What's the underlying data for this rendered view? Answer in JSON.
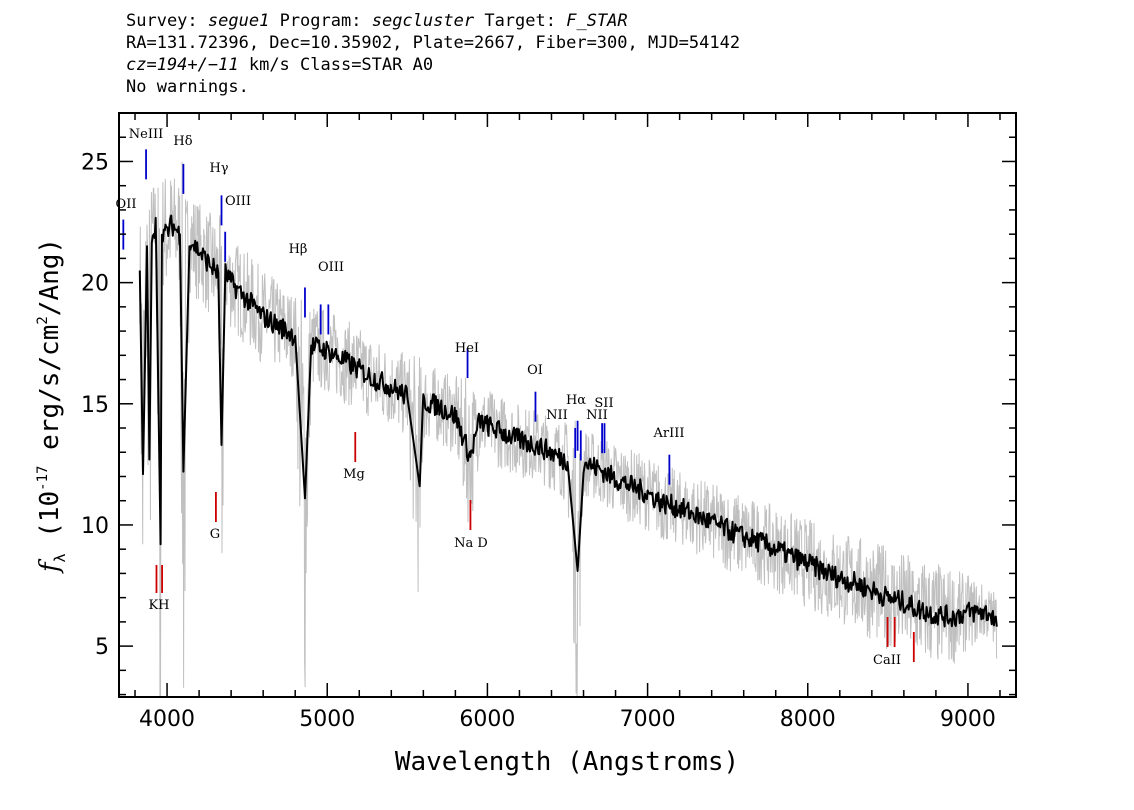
{
  "header": {
    "survey_label": "Survey:",
    "survey": "segue1",
    "program_label": "Program:",
    "program": "segcluster",
    "target_label": "Target:",
    "target": "F_STAR",
    "line2": "RA=131.72396, Dec=10.35902, Plate=2667, Fiber=300, MJD=54142",
    "cz_value": "cz=194+/−11",
    "cz_rest": "km/s Class=STAR A0",
    "warnings": "No warnings."
  },
  "chart_data": {
    "type": "line",
    "xlabel": "Wavelength (Angstroms)",
    "ylabel": "f_λ (10^-17 erg/s/cm^2/Ang)",
    "xlim": [
      3700,
      9300
    ],
    "ylim": [
      2.9,
      27
    ],
    "x_ticks": [
      4000,
      5000,
      6000,
      7000,
      8000,
      9000
    ],
    "y_ticks": [
      5,
      10,
      15,
      20,
      25
    ],
    "series": [
      {
        "role": "flux",
        "color": "#000000",
        "x": [
          3830,
          3850,
          3875,
          3890,
          3905,
          3930,
          3960,
          3968,
          3990,
          4030,
          4080,
          4102,
          4140,
          4200,
          4260,
          4320,
          4340,
          4365,
          4400,
          4500,
          4600,
          4700,
          4800,
          4861,
          4900,
          5000,
          5100,
          5200,
          5300,
          5400,
          5500,
          5577,
          5600,
          5700,
          5800,
          5893,
          5950,
          6000,
          6100,
          6200,
          6300,
          6400,
          6500,
          6563,
          6600,
          6700,
          6800,
          6900,
          7000,
          7100,
          7200,
          7300,
          7400,
          7500,
          7600,
          7700,
          7800,
          7900,
          8000,
          8100,
          8200,
          8300,
          8400,
          8500,
          8600,
          8700,
          8800,
          8900,
          9000,
          9100,
          9150,
          9180
        ],
        "y": [
          20.5,
          12.1,
          21.5,
          12.7,
          22.0,
          22.4,
          9.2,
          22.2,
          22.0,
          22.4,
          22.0,
          12.2,
          21.8,
          21.3,
          20.8,
          20.4,
          13.3,
          20.4,
          20.0,
          19.3,
          18.6,
          18.2,
          17.8,
          11.1,
          17.4,
          17.2,
          16.8,
          16.4,
          16.0,
          15.7,
          15.3,
          11.6,
          15.1,
          14.9,
          14.5,
          12.8,
          14.3,
          14.1,
          13.8,
          13.5,
          13.3,
          13.0,
          12.6,
          8.1,
          12.6,
          12.3,
          11.9,
          11.6,
          11.3,
          10.9,
          10.7,
          10.4,
          10.1,
          9.8,
          9.5,
          9.3,
          9.0,
          8.7,
          8.4,
          8.1,
          7.8,
          7.6,
          7.3,
          7.0,
          6.8,
          6.5,
          6.3,
          6.2,
          6.4,
          6.4,
          6.3,
          5.8
        ]
      },
      {
        "role": "error",
        "color": "#c0c0c0",
        "x": [
          3830,
          3900,
          4000,
          4100,
          4200,
          4300,
          4400,
          4600,
          4800,
          5000,
          5200,
          5400,
          5600,
          5800,
          6000,
          6200,
          6400,
          6600,
          6800,
          7000,
          7200,
          7400,
          7600,
          7800,
          8000,
          8200,
          8400,
          8600,
          8800,
          9000,
          9180
        ],
        "y": [
          22.5,
          24.0,
          24.5,
          24.2,
          23.2,
          22.5,
          21.8,
          20.4,
          19.4,
          18.8,
          18.0,
          17.2,
          16.6,
          16.0,
          15.5,
          14.9,
          14.4,
          13.9,
          13.3,
          12.7,
          12.1,
          11.6,
          11.1,
          10.6,
          10.1,
          9.6,
          9.2,
          8.7,
          8.3,
          7.8,
          7.2
        ]
      }
    ],
    "emission_lines": [
      {
        "label": "OII",
        "x": 3727,
        "y": 22.6
      },
      {
        "label": "NeIII",
        "x": 3869,
        "y": 25.5
      },
      {
        "label": "Hδ",
        "x": 4102,
        "y": 24.9
      },
      {
        "label": "Hγ",
        "x": 4340,
        "y": 23.6
      },
      {
        "label": "OIII",
        "x": 4363,
        "y": 22.1
      },
      {
        "label": "Hβ",
        "x": 4861,
        "y": 19.8
      },
      {
        "label": "OIII",
        "x": 4959,
        "y": 19.1
      },
      {
        "label": "OIII",
        "x": 5007,
        "y": 19.1
      },
      {
        "label": "HeI",
        "x": 5876,
        "y": 17.3
      },
      {
        "label": "OI",
        "x": 6300,
        "y": 15.5
      },
      {
        "label": "NII",
        "x": 6548,
        "y": 14.0
      },
      {
        "label": "Hα",
        "x": 6563,
        "y": 14.3
      },
      {
        "label": "NII",
        "x": 6583,
        "y": 13.9
      },
      {
        "label": "SII",
        "x": 6716,
        "y": 14.2
      },
      {
        "label": "SII",
        "x": 6731,
        "y": 14.2
      },
      {
        "label": "ArIII",
        "x": 7136,
        "y": 12.9
      }
    ],
    "emission_label_texts": [
      "OII",
      "NeIII",
      "Hδ",
      "Hγ",
      "OIII",
      "Hβ",
      "OIII",
      "HeI",
      "OI",
      "NII",
      "Hα",
      "NII",
      "SII",
      "ArIII"
    ],
    "absorption_lines": [
      {
        "label": "K",
        "x": 3934
      },
      {
        "label": "H",
        "x": 3969
      },
      {
        "label": "G",
        "x": 4305
      },
      {
        "label": "Mg",
        "x": 5175
      },
      {
        "label": "Na D",
        "x": 5894
      },
      {
        "label": "CaII",
        "x": 8498
      },
      {
        "label": "CaII",
        "x": 8542
      },
      {
        "label": "CaII",
        "x": 8662
      }
    ],
    "absorption_label_texts": [
      "KH",
      "G",
      "Mg",
      "Na D",
      "CaII"
    ],
    "emission_color": "#0000cc",
    "absorption_color": "#cc0000",
    "grid": false
  }
}
